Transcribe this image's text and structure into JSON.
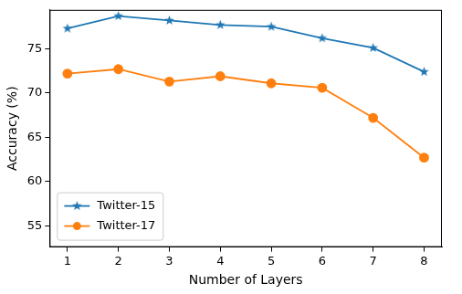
{
  "chart_data": {
    "type": "line",
    "x_label": "Number of Layers",
    "y_label": "Accuracy (%)",
    "x": [
      1,
      2,
      3,
      4,
      5,
      6,
      7,
      8
    ],
    "series": [
      {
        "name": "Twitter-15",
        "color": "#1f77b4",
        "marker": "star",
        "line_style": "solid",
        "values": [
          77.3,
          78.7,
          78.2,
          77.7,
          77.5,
          76.2,
          75.1,
          72.4
        ]
      },
      {
        "name": "Twitter-17",
        "color": "#ff7f0e",
        "marker": "circle",
        "line_style": "solid",
        "values": [
          72.2,
          72.7,
          71.3,
          71.9,
          71.1,
          70.6,
          67.2,
          62.7
        ]
      }
    ],
    "xlim": [
      0.65,
      8.35
    ],
    "xticks": [
      1,
      2,
      3,
      4,
      5,
      6,
      7,
      8
    ],
    "ylim": [
      52.6,
      79.4
    ],
    "yticks": [
      55,
      60,
      65,
      70,
      75
    ],
    "grid": false,
    "legend": "lower left"
  }
}
